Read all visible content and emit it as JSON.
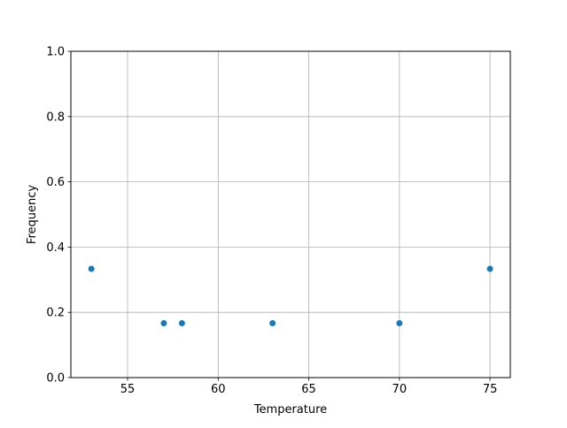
{
  "chart_data": {
    "type": "scatter",
    "title": "",
    "xlabel": "Temperature",
    "ylabel": "Frequency",
    "xlim": [
      51.87,
      76.12
    ],
    "ylim": [
      0,
      1
    ],
    "xticks": [
      55,
      60,
      65,
      70,
      75
    ],
    "xtick_labels": [
      "55",
      "60",
      "65",
      "70",
      "75"
    ],
    "yticks": [
      0,
      0.2,
      0.4,
      0.6,
      0.8,
      1.0
    ],
    "ytick_labels": [
      "0.0",
      "0.2",
      "0.4",
      "0.6",
      "0.8",
      "1.0"
    ],
    "grid": true,
    "color": "#1f77b4",
    "x": [
      53,
      57,
      58,
      63,
      70,
      75
    ],
    "y": [
      0.3333,
      0.1667,
      0.1667,
      0.1667,
      0.1667,
      0.3333
    ]
  }
}
